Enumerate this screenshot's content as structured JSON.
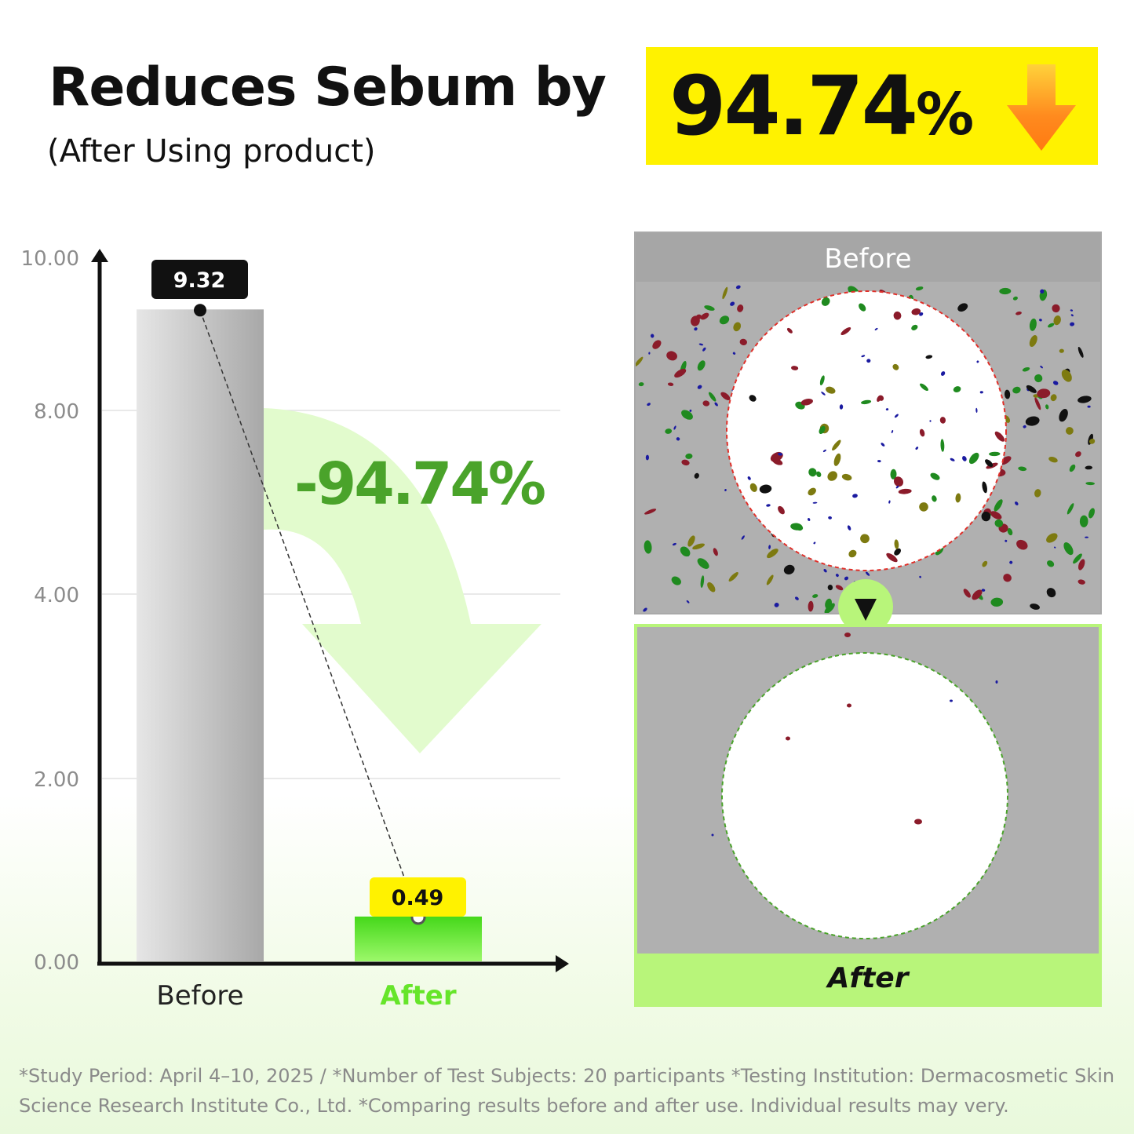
{
  "headline": "Reduces Sebum by",
  "subheadline": "(After Using product)",
  "highlight": {
    "number": "94.74",
    "percent_sign": "%"
  },
  "colors": {
    "highlight_bg": "#fff200",
    "accent_orange": "#ff8a1e",
    "accent_green": "#4aa32a",
    "after_green": "#66e52a",
    "panel_green": "#b8f57a"
  },
  "chart_data": {
    "type": "bar",
    "categories": [
      "Before",
      "After"
    ],
    "values": [
      9.32,
      0.49
    ],
    "value_labels": [
      "9.32",
      "0.49"
    ],
    "annotation": "-94.74%",
    "ylim": [
      0,
      10
    ],
    "ytick_labels": [
      "0.00",
      "2.00",
      "4.00",
      "8.00",
      "10.00"
    ],
    "ytick_values": [
      0,
      2,
      4,
      8,
      10
    ],
    "grid": true,
    "bar_colors": [
      "#bdbdbd",
      "#66e52a"
    ]
  },
  "comparison_panels": {
    "before_label": "Before",
    "after_label": "After",
    "connector_icon": "chevron-down-icon"
  },
  "footnote": "*Study Period: April 4–10, 2025 / *Number of Test Subjects: 20 participants  *Testing Institution: Dermacosmetic Skin Science Research Institute Co., Ltd. *Comparing results before and after use. Individual results may very."
}
